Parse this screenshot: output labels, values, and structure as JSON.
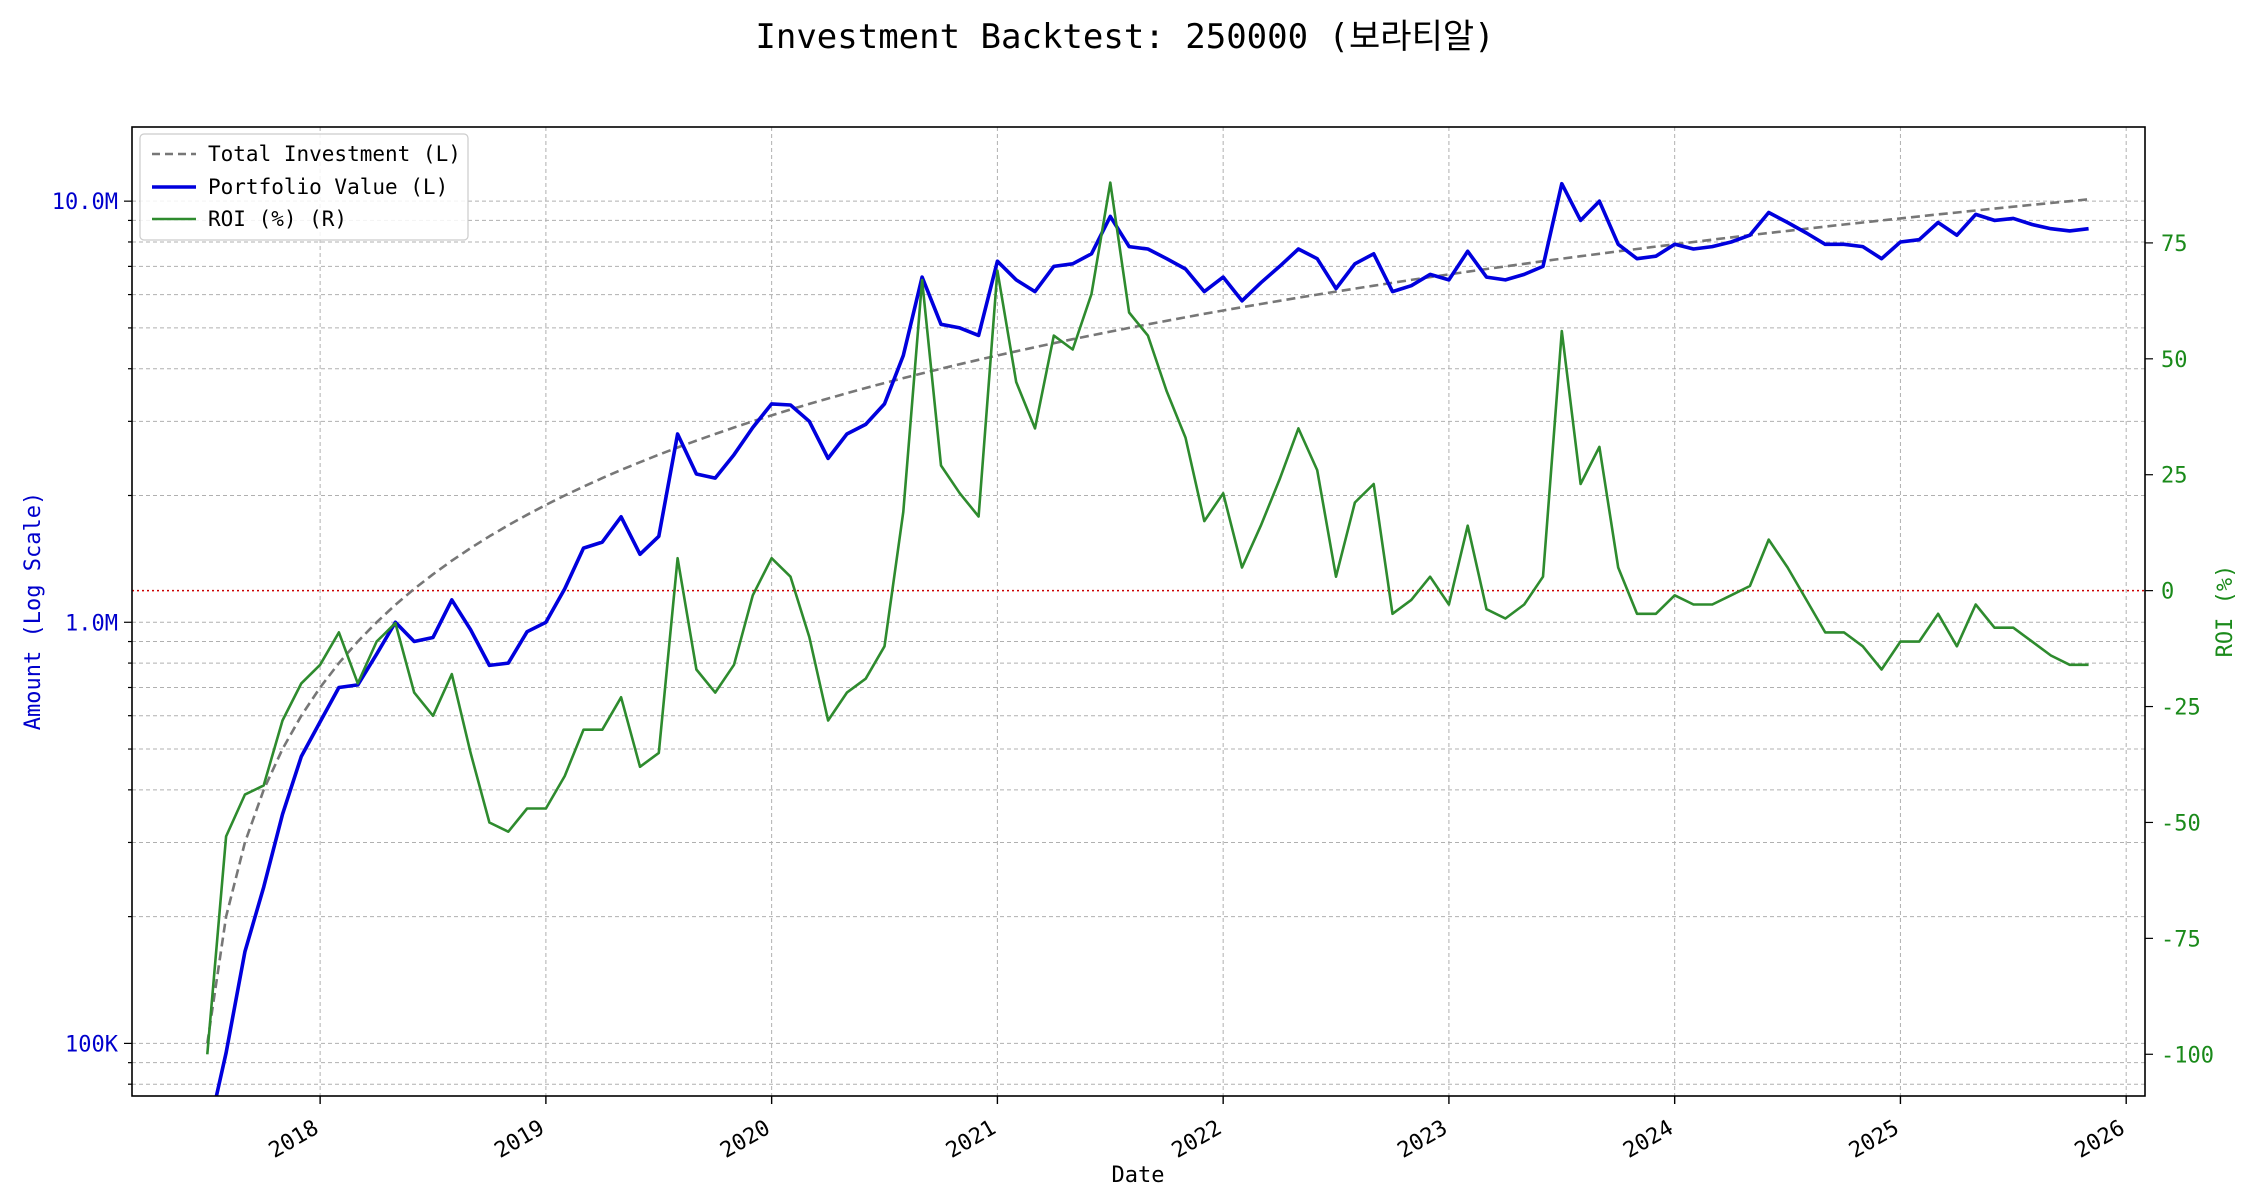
{
  "title": "Investment Backtest: 250000 (보라티알)",
  "colors": {
    "left_axis": "#0000cc",
    "right_axis": "#1a8a1a",
    "investment": "#777777",
    "portfolio": "#0000dd",
    "roi": "#2e8b2e",
    "zero_line": "#cc0000",
    "grid": "#b0b0b0"
  },
  "chart_data": {
    "type": "line",
    "title": "Investment Backtest: 250000 (보라티알)",
    "xlabel": "Date",
    "ylabel_left": "Amount (Log Scale)",
    "ylabel_right": "ROI (%)",
    "left_scale": "log",
    "xlim": [
      "2017-03-01",
      "2026-02-01"
    ],
    "ylim_left": [
      75000,
      15000000
    ],
    "ylim_right": [
      -109,
      100
    ],
    "grid": true,
    "legend_position": "top-left",
    "x_ticks": [
      "2018",
      "2019",
      "2020",
      "2021",
      "2022",
      "2023",
      "2024",
      "2025",
      "2026"
    ],
    "left_ticks": [
      {
        "value": 100000,
        "label": "100K"
      },
      {
        "value": 1000000,
        "label": "1.0M"
      },
      {
        "value": 10000000,
        "label": "10.0M"
      }
    ],
    "right_ticks": [
      -100,
      -75,
      -50,
      -25,
      0,
      25,
      50,
      75
    ],
    "reference_line": {
      "axis": "right",
      "value": 0,
      "style": "dotted"
    },
    "x": [
      "2017-07",
      "2017-08",
      "2017-09",
      "2017-10",
      "2017-11",
      "2017-12",
      "2018-01",
      "2018-02",
      "2018-03",
      "2018-04",
      "2018-05",
      "2018-06",
      "2018-07",
      "2018-08",
      "2018-09",
      "2018-10",
      "2018-11",
      "2018-12",
      "2019-01",
      "2019-02",
      "2019-03",
      "2019-04",
      "2019-05",
      "2019-06",
      "2019-07",
      "2019-08",
      "2019-09",
      "2019-10",
      "2019-11",
      "2019-12",
      "2020-01",
      "2020-02",
      "2020-03",
      "2020-04",
      "2020-05",
      "2020-06",
      "2020-07",
      "2020-08",
      "2020-09",
      "2020-10",
      "2020-11",
      "2020-12",
      "2021-01",
      "2021-02",
      "2021-03",
      "2021-04",
      "2021-05",
      "2021-06",
      "2021-07",
      "2021-08",
      "2021-09",
      "2021-10",
      "2021-11",
      "2021-12",
      "2022-01",
      "2022-02",
      "2022-03",
      "2022-04",
      "2022-05",
      "2022-06",
      "2022-07",
      "2022-08",
      "2022-09",
      "2022-10",
      "2022-11",
      "2022-12",
      "2023-01",
      "2023-02",
      "2023-03",
      "2023-04",
      "2023-05",
      "2023-06",
      "2023-07",
      "2023-08",
      "2023-09",
      "2023-10",
      "2023-11",
      "2023-12",
      "2024-01",
      "2024-02",
      "2024-03",
      "2024-04",
      "2024-05",
      "2024-06",
      "2024-07",
      "2024-08",
      "2024-09",
      "2024-10",
      "2024-11",
      "2024-12",
      "2025-01",
      "2025-02",
      "2025-03",
      "2025-04",
      "2025-05",
      "2025-06",
      "2025-07",
      "2025-08",
      "2025-09",
      "2025-10",
      "2025-11"
    ],
    "series": [
      {
        "name": "Total Investment (L)",
        "axis": "left",
        "style": "dashed",
        "values": [
          100000,
          200000,
          300000,
          400000,
          500000,
          600000,
          700000,
          800000,
          900000,
          1000000,
          1100000,
          1200000,
          1300000,
          1400000,
          1500000,
          1600000,
          1700000,
          1800000,
          1900000,
          2000000,
          2100000,
          2200000,
          2300000,
          2400000,
          2500000,
          2600000,
          2700000,
          2800000,
          2900000,
          3000000,
          3100000,
          3200000,
          3300000,
          3400000,
          3500000,
          3600000,
          3700000,
          3800000,
          3900000,
          4000000,
          4100000,
          4200000,
          4300000,
          4400000,
          4500000,
          4600000,
          4700000,
          4800000,
          4900000,
          5000000,
          5100000,
          5200000,
          5300000,
          5400000,
          5500000,
          5600000,
          5700000,
          5800000,
          5900000,
          6000000,
          6100000,
          6200000,
          6300000,
          6400000,
          6500000,
          6600000,
          6700000,
          6800000,
          6900000,
          7000000,
          7100000,
          7200000,
          7300000,
          7400000,
          7500000,
          7600000,
          7700000,
          7800000,
          7900000,
          8000000,
          8100000,
          8200000,
          8300000,
          8400000,
          8500000,
          8600000,
          8700000,
          8800000,
          8900000,
          9000000,
          9100000,
          9200000,
          9300000,
          9400000,
          9500000,
          9600000,
          9700000,
          9800000,
          9900000,
          10000000,
          10100000
        ]
      },
      {
        "name": "Portfolio Value (L)",
        "axis": "left",
        "style": "solid",
        "values": [
          60000,
          95000,
          165000,
          235000,
          350000,
          480000,
          580000,
          700000,
          710000,
          840000,
          1000000,
          900000,
          920000,
          1130000,
          960000,
          790000,
          800000,
          950000,
          1000000,
          1200000,
          1500000,
          1550000,
          1780000,
          1450000,
          1600000,
          2800000,
          2250000,
          2200000,
          2500000,
          2900000,
          3300000,
          3280000,
          3000000,
          2450000,
          2800000,
          2950000,
          3300000,
          4300000,
          6600000,
          5100000,
          5000000,
          4800000,
          7200000,
          6500000,
          6100000,
          7000000,
          7100000,
          7500000,
          9200000,
          7800000,
          7700000,
          7300000,
          6900000,
          6100000,
          6600000,
          5800000,
          6400000,
          7000000,
          7700000,
          7300000,
          6200000,
          7100000,
          7500000,
          6100000,
          6300000,
          6700000,
          6500000,
          7600000,
          6600000,
          6500000,
          6700000,
          7000000,
          11000000,
          9000000,
          10000000,
          7900000,
          7300000,
          7400000,
          7900000,
          7700000,
          7800000,
          8000000,
          8300000,
          9400000,
          8900000,
          8400000,
          7900000,
          7900000,
          7800000,
          7300000,
          8000000,
          8100000,
          8900000,
          8300000,
          9300000,
          9000000,
          9100000,
          8800000,
          8600000,
          8500000,
          8600000
        ]
      },
      {
        "name": "ROI (%) (R)",
        "axis": "right",
        "style": "solid",
        "values": [
          -100,
          -53,
          -44,
          -42,
          -28,
          -20,
          -16,
          -9,
          -20,
          -11,
          -7,
          -22,
          -27,
          -18,
          -35,
          -50,
          -52,
          -47,
          -47,
          -40,
          -30,
          -30,
          -23,
          -38,
          -35,
          7,
          -17,
          -22,
          -16,
          -1,
          7,
          3,
          -10,
          -28,
          -22,
          -19,
          -12,
          17,
          67,
          27,
          21,
          16,
          69,
          45,
          35,
          55,
          52,
          64,
          88,
          60,
          55,
          43,
          33,
          15,
          21,
          5,
          14,
          24,
          35,
          26,
          3,
          19,
          23,
          -5,
          -2,
          3,
          -3,
          14,
          -4,
          -6,
          -3,
          3,
          56,
          23,
          31,
          5,
          -5,
          -5,
          -1,
          -3,
          -3,
          -1,
          1,
          11,
          5,
          -2,
          -9,
          -9,
          -12,
          -17,
          -11,
          -11,
          -5,
          -12,
          -3,
          -8,
          -8,
          -11,
          -14,
          -16,
          -16
        ]
      }
    ]
  }
}
